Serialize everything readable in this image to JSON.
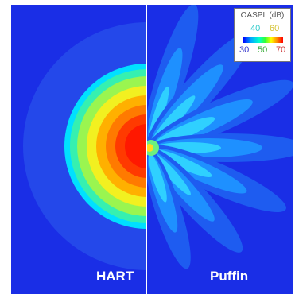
{
  "panels": {
    "left_label": "HART",
    "right_label": "Puffin"
  },
  "legend": {
    "title": "OASPL (dB)",
    "ticks_top": [
      "40",
      "60"
    ],
    "ticks_bottom": [
      "30",
      "50",
      "70"
    ],
    "tick_colors": {
      "30": "#3333cc",
      "40": "#33cccc",
      "50": "#33aa33",
      "60": "#cccc33",
      "70": "#cc3333"
    }
  },
  "colors": {
    "background": "#1a2ee6",
    "levels": [
      "#1f4de8",
      "#1e90ff",
      "#00d7ff",
      "#3ae8b8",
      "#8cf55a",
      "#e7f51c",
      "#ffb000",
      "#ff7a00",
      "#ff3300",
      "#ff1a00"
    ]
  }
}
